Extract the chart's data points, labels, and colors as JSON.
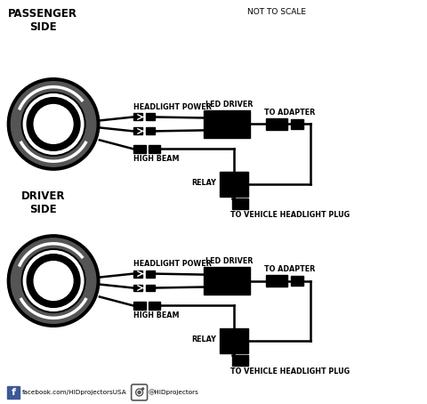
{
  "bg_color": "#ffffff",
  "line_color": "#000000",
  "fill_color": "#000000",
  "title_passenger": "PASSENGER\nSIDE",
  "title_driver": "DRIVER\nSIDE",
  "note": "NOT TO SCALE",
  "label_headlight_power": "HEADLIGHT POWER",
  "label_led_driver": "LED DRIVER",
  "label_to_adapter": "TO ADAPTER",
  "label_high_beam": "HIGH BEAM",
  "label_relay": "RELAY",
  "label_to_plug": "TO VEHICLE HEADLIGHT PLUG",
  "footer_fb": "facebook.com/HIDprojectorsUSA",
  "footer_ig": "@HIDprojectors",
  "lw": 1.8
}
